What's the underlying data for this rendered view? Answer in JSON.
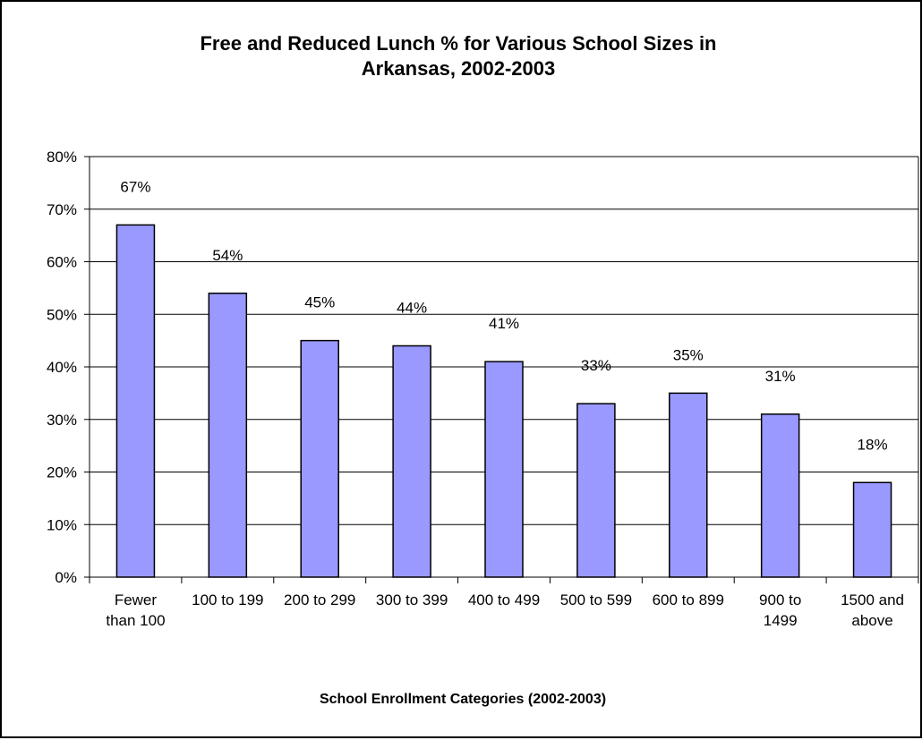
{
  "chart_data": {
    "type": "bar",
    "title_lines": [
      "Free and Reduced Lunch % for Various School Sizes in",
      "Arkansas, 2002-2003"
    ],
    "xlabel": "School Enrollment Categories (2002-2003)",
    "ylabel": "",
    "categories": [
      [
        "Fewer",
        "than 100"
      ],
      [
        "100 to 199"
      ],
      [
        "200 to 299"
      ],
      [
        "300 to 399"
      ],
      [
        "400 to 499"
      ],
      [
        "500 to 599"
      ],
      [
        "600 to 899"
      ],
      [
        "900 to",
        "1499"
      ],
      [
        "1500 and",
        "above"
      ]
    ],
    "values": [
      67,
      54,
      45,
      44,
      41,
      33,
      35,
      31,
      18
    ],
    "data_labels": [
      "67%",
      "54%",
      "45%",
      "44%",
      "41%",
      "33%",
      "35%",
      "31%",
      "18%"
    ],
    "ylim": [
      0,
      80
    ],
    "yticks": [
      "0%",
      "10%",
      "20%",
      "30%",
      "40%",
      "50%",
      "60%",
      "70%",
      "80%"
    ],
    "grid": true,
    "legend": false,
    "colors": {
      "bar_fill": "#9999ff",
      "bar_stroke": "#000000",
      "grid": "#000000"
    }
  }
}
